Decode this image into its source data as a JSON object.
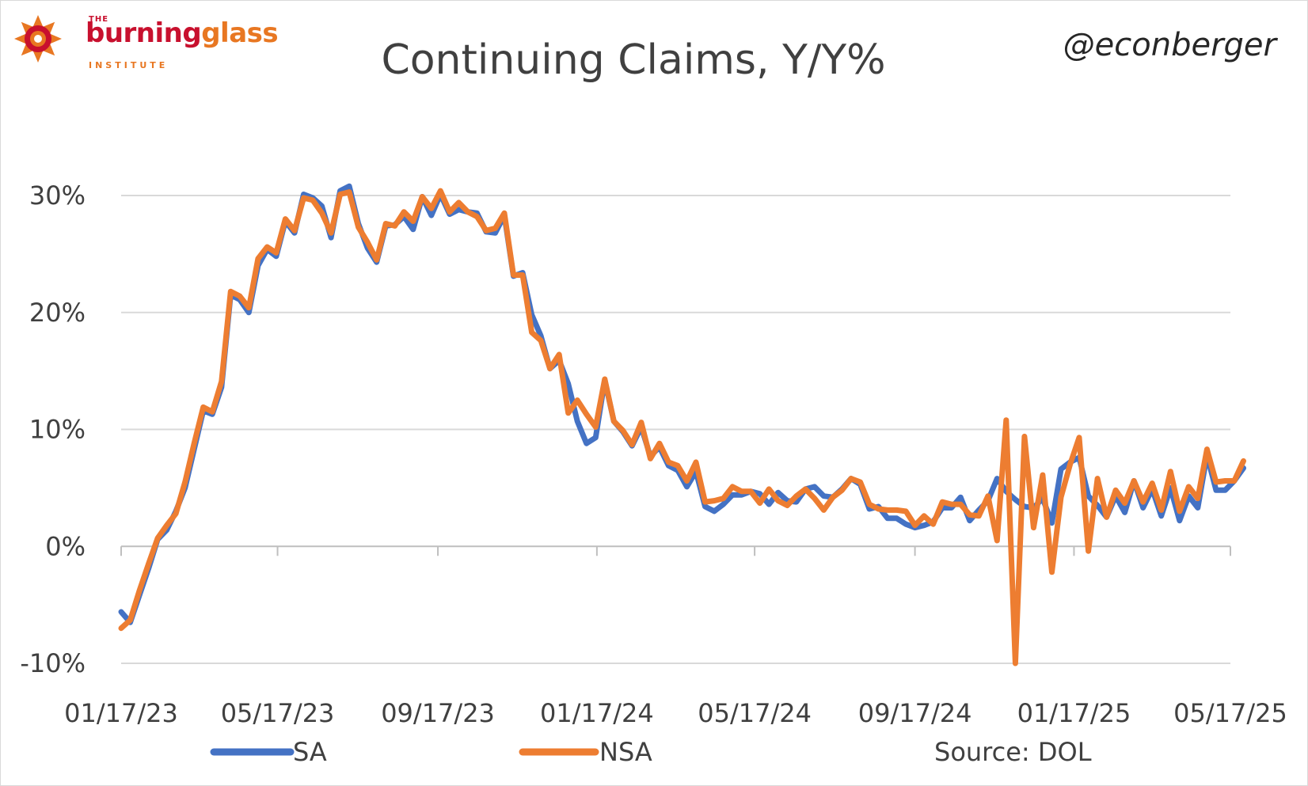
{
  "branding": {
    "logo_the": "THE",
    "logo_burning": "burning",
    "logo_glass": "glass",
    "logo_institute": "INSTITUTE",
    "handle": "@econberger",
    "brand_red": "#c8102e",
    "brand_orange": "#e87722"
  },
  "source_note": "Source: DOL",
  "chart_data": {
    "type": "line",
    "title": "Continuing Claims, Y/Y%",
    "xlabel": "",
    "ylabel": "",
    "ylim": [
      -10,
      30
    ],
    "y_ticks": [
      30,
      20,
      10,
      0,
      -10
    ],
    "y_tick_labels": [
      "30%",
      "20%",
      "10%",
      "0%",
      "-10%"
    ],
    "x_tick_labels": [
      "01/17/23",
      "05/17/23",
      "09/17/23",
      "01/17/24",
      "05/17/24",
      "09/17/24",
      "01/17/25",
      "05/17/25"
    ],
    "x_range": [
      "01/17/23",
      "05/17/25"
    ],
    "grid": true,
    "legend_position": "bottom",
    "series": [
      {
        "name": "SA",
        "color": "#4472c4",
        "values": [
          [
            "2023-01-17",
            -5.6
          ],
          [
            "2023-01-24",
            -6.5
          ],
          [
            "2023-01-31",
            -4.2
          ],
          [
            "2023-02-07",
            -1.9
          ],
          [
            "2023-02-14",
            0.6
          ],
          [
            "2023-02-21",
            1.4
          ],
          [
            "2023-02-28",
            3.0
          ],
          [
            "2023-03-07",
            5.0
          ],
          [
            "2023-03-14",
            8.3
          ],
          [
            "2023-03-21",
            11.6
          ],
          [
            "2023-03-28",
            11.3
          ],
          [
            "2023-04-04",
            13.6
          ],
          [
            "2023-04-11",
            21.5
          ],
          [
            "2023-04-18",
            21.1
          ],
          [
            "2023-04-25",
            20.0
          ],
          [
            "2023-05-02",
            24.0
          ],
          [
            "2023-05-09",
            25.4
          ],
          [
            "2023-05-16",
            24.8
          ],
          [
            "2023-05-23",
            27.8
          ],
          [
            "2023-05-30",
            26.8
          ],
          [
            "2023-06-06",
            30.1
          ],
          [
            "2023-06-13",
            29.8
          ],
          [
            "2023-06-20",
            29.1
          ],
          [
            "2023-06-27",
            26.4
          ],
          [
            "2023-07-04",
            30.4
          ],
          [
            "2023-07-11",
            30.8
          ],
          [
            "2023-07-18",
            27.6
          ],
          [
            "2023-07-25",
            25.5
          ],
          [
            "2023-08-01",
            24.3
          ],
          [
            "2023-08-08",
            27.4
          ],
          [
            "2023-08-15",
            27.5
          ],
          [
            "2023-08-22",
            28.2
          ],
          [
            "2023-08-29",
            27.1
          ],
          [
            "2023-09-05",
            29.9
          ],
          [
            "2023-09-12",
            28.3
          ],
          [
            "2023-09-19",
            30.1
          ],
          [
            "2023-09-26",
            28.4
          ],
          [
            "2023-10-03",
            28.8
          ],
          [
            "2023-10-10",
            28.6
          ],
          [
            "2023-10-17",
            28.5
          ],
          [
            "2023-10-24",
            26.9
          ],
          [
            "2023-10-31",
            26.8
          ],
          [
            "2023-11-07",
            28.3
          ],
          [
            "2023-11-14",
            23.1
          ],
          [
            "2023-11-21",
            23.4
          ],
          [
            "2023-11-28",
            19.8
          ],
          [
            "2023-12-05",
            18.0
          ],
          [
            "2023-12-12",
            15.2
          ],
          [
            "2023-12-19",
            15.9
          ],
          [
            "2023-12-26",
            13.9
          ],
          [
            "2024-01-02",
            10.7
          ],
          [
            "2024-01-09",
            8.8
          ],
          [
            "2024-01-16",
            9.3
          ],
          [
            "2024-01-23",
            14.2
          ],
          [
            "2024-01-30",
            10.7
          ],
          [
            "2024-02-06",
            9.8
          ],
          [
            "2024-02-13",
            8.6
          ],
          [
            "2024-02-20",
            10.2
          ],
          [
            "2024-02-27",
            7.7
          ],
          [
            "2024-03-05",
            8.5
          ],
          [
            "2024-03-12",
            6.9
          ],
          [
            "2024-03-19",
            6.5
          ],
          [
            "2024-03-26",
            5.1
          ],
          [
            "2024-04-02",
            6.4
          ],
          [
            "2024-04-09",
            3.4
          ],
          [
            "2024-04-16",
            3.0
          ],
          [
            "2024-04-23",
            3.6
          ],
          [
            "2024-04-30",
            4.4
          ],
          [
            "2024-05-07",
            4.4
          ],
          [
            "2024-05-14",
            4.7
          ],
          [
            "2024-05-21",
            4.5
          ],
          [
            "2024-05-28",
            3.6
          ],
          [
            "2024-06-04",
            4.6
          ],
          [
            "2024-06-11",
            3.9
          ],
          [
            "2024-06-18",
            3.8
          ],
          [
            "2024-06-25",
            4.9
          ],
          [
            "2024-07-02",
            5.1
          ],
          [
            "2024-07-09",
            4.3
          ],
          [
            "2024-07-16",
            4.2
          ],
          [
            "2024-07-23",
            4.9
          ],
          [
            "2024-07-30",
            5.8
          ],
          [
            "2024-08-06",
            5.3
          ],
          [
            "2024-08-13",
            3.2
          ],
          [
            "2024-08-20",
            3.4
          ],
          [
            "2024-08-27",
            2.4
          ],
          [
            "2024-09-03",
            2.4
          ],
          [
            "2024-09-10",
            1.9
          ],
          [
            "2024-09-17",
            1.6
          ],
          [
            "2024-09-24",
            1.8
          ],
          [
            "2024-10-01",
            2.1
          ],
          [
            "2024-10-08",
            3.3
          ],
          [
            "2024-10-15",
            3.3
          ],
          [
            "2024-10-22",
            4.2
          ],
          [
            "2024-10-29",
            2.2
          ],
          [
            "2024-11-05",
            3.1
          ],
          [
            "2024-11-12",
            3.9
          ],
          [
            "2024-11-19",
            5.8
          ],
          [
            "2024-11-26",
            4.7
          ],
          [
            "2024-12-03",
            4.0
          ],
          [
            "2024-12-10",
            3.4
          ],
          [
            "2024-12-17",
            3.3
          ],
          [
            "2024-12-24",
            4.1
          ],
          [
            "2024-12-31",
            2.0
          ],
          [
            "2025-01-07",
            6.6
          ],
          [
            "2025-01-14",
            7.2
          ],
          [
            "2025-01-21",
            7.6
          ],
          [
            "2025-01-28",
            4.3
          ],
          [
            "2025-02-04",
            3.5
          ],
          [
            "2025-02-11",
            2.5
          ],
          [
            "2025-02-18",
            4.3
          ],
          [
            "2025-02-25",
            2.9
          ],
          [
            "2025-03-04",
            5.6
          ],
          [
            "2025-03-11",
            3.3
          ],
          [
            "2025-03-18",
            4.9
          ],
          [
            "2025-03-25",
            2.6
          ],
          [
            "2025-04-01",
            5.0
          ],
          [
            "2025-04-08",
            2.2
          ],
          [
            "2025-04-15",
            4.3
          ],
          [
            "2025-04-22",
            3.3
          ],
          [
            "2025-04-29",
            7.8
          ],
          [
            "2025-05-06",
            4.8
          ],
          [
            "2025-05-13",
            4.8
          ],
          [
            "2025-05-20",
            5.6
          ],
          [
            "2025-05-27",
            6.7
          ]
        ]
      },
      {
        "name": "NSA",
        "color": "#ed7d31",
        "values": [
          [
            "2023-01-17",
            -7.0
          ],
          [
            "2023-01-24",
            -6.3
          ],
          [
            "2023-01-31",
            -3.8
          ],
          [
            "2023-02-07",
            -1.5
          ],
          [
            "2023-02-14",
            0.7
          ],
          [
            "2023-02-21",
            1.8
          ],
          [
            "2023-02-28",
            2.8
          ],
          [
            "2023-03-07",
            5.5
          ],
          [
            "2023-03-14",
            8.8
          ],
          [
            "2023-03-21",
            11.9
          ],
          [
            "2023-03-28",
            11.5
          ],
          [
            "2023-04-04",
            14.1
          ],
          [
            "2023-04-11",
            21.8
          ],
          [
            "2023-04-18",
            21.4
          ],
          [
            "2023-04-25",
            20.4
          ],
          [
            "2023-05-02",
            24.6
          ],
          [
            "2023-05-09",
            25.6
          ],
          [
            "2023-05-16",
            25.1
          ],
          [
            "2023-05-23",
            28.0
          ],
          [
            "2023-05-30",
            27.0
          ],
          [
            "2023-06-06",
            29.8
          ],
          [
            "2023-06-13",
            29.6
          ],
          [
            "2023-06-20",
            28.5
          ],
          [
            "2023-06-27",
            26.8
          ],
          [
            "2023-07-04",
            30.1
          ],
          [
            "2023-07-11",
            30.3
          ],
          [
            "2023-07-18",
            27.3
          ],
          [
            "2023-07-25",
            26.0
          ],
          [
            "2023-08-01",
            24.5
          ],
          [
            "2023-08-08",
            27.6
          ],
          [
            "2023-08-15",
            27.4
          ],
          [
            "2023-08-22",
            28.6
          ],
          [
            "2023-08-29",
            27.8
          ],
          [
            "2023-09-05",
            29.9
          ],
          [
            "2023-09-12",
            28.9
          ],
          [
            "2023-09-19",
            30.4
          ],
          [
            "2023-09-26",
            28.6
          ],
          [
            "2023-10-03",
            29.4
          ],
          [
            "2023-10-10",
            28.6
          ],
          [
            "2023-10-17",
            28.2
          ],
          [
            "2023-10-24",
            27.0
          ],
          [
            "2023-10-31",
            27.2
          ],
          [
            "2023-11-07",
            28.5
          ],
          [
            "2023-11-14",
            23.2
          ],
          [
            "2023-11-21",
            23.2
          ],
          [
            "2023-11-28",
            18.3
          ],
          [
            "2023-12-05",
            17.6
          ],
          [
            "2023-12-12",
            15.2
          ],
          [
            "2023-12-19",
            16.4
          ],
          [
            "2023-12-26",
            11.4
          ],
          [
            "2024-01-02",
            12.5
          ],
          [
            "2024-01-09",
            11.3
          ],
          [
            "2024-01-16",
            10.2
          ],
          [
            "2024-01-23",
            14.3
          ],
          [
            "2024-01-30",
            10.7
          ],
          [
            "2024-02-06",
            9.9
          ],
          [
            "2024-02-13",
            8.7
          ],
          [
            "2024-02-20",
            10.6
          ],
          [
            "2024-02-27",
            7.5
          ],
          [
            "2024-03-05",
            8.8
          ],
          [
            "2024-03-12",
            7.2
          ],
          [
            "2024-03-19",
            6.9
          ],
          [
            "2024-03-26",
            5.6
          ],
          [
            "2024-04-02",
            7.2
          ],
          [
            "2024-04-09",
            3.8
          ],
          [
            "2024-04-16",
            3.9
          ],
          [
            "2024-04-23",
            4.1
          ],
          [
            "2024-04-30",
            5.1
          ],
          [
            "2024-05-07",
            4.7
          ],
          [
            "2024-05-14",
            4.7
          ],
          [
            "2024-05-21",
            3.7
          ],
          [
            "2024-05-28",
            4.9
          ],
          [
            "2024-06-04",
            3.9
          ],
          [
            "2024-06-11",
            3.5
          ],
          [
            "2024-06-18",
            4.3
          ],
          [
            "2024-06-25",
            4.9
          ],
          [
            "2024-07-02",
            4.1
          ],
          [
            "2024-07-09",
            3.1
          ],
          [
            "2024-07-16",
            4.2
          ],
          [
            "2024-07-23",
            4.8
          ],
          [
            "2024-07-30",
            5.8
          ],
          [
            "2024-08-06",
            5.5
          ],
          [
            "2024-08-13",
            3.6
          ],
          [
            "2024-08-20",
            3.2
          ],
          [
            "2024-08-27",
            3.1
          ],
          [
            "2024-09-03",
            3.1
          ],
          [
            "2024-09-10",
            3.0
          ],
          [
            "2024-09-17",
            1.8
          ],
          [
            "2024-09-24",
            2.6
          ],
          [
            "2024-10-01",
            1.9
          ],
          [
            "2024-10-08",
            3.8
          ],
          [
            "2024-10-15",
            3.6
          ],
          [
            "2024-10-22",
            3.6
          ],
          [
            "2024-10-29",
            2.7
          ],
          [
            "2024-11-05",
            2.6
          ],
          [
            "2024-11-12",
            4.3
          ],
          [
            "2024-11-19",
            0.5
          ],
          [
            "2024-11-26",
            10.8
          ],
          [
            "2024-12-03",
            -10.0
          ],
          [
            "2024-12-10",
            9.4
          ],
          [
            "2024-12-17",
            1.6
          ],
          [
            "2024-12-24",
            6.1
          ],
          [
            "2024-12-31",
            -2.2
          ],
          [
            "2025-01-07",
            4.2
          ],
          [
            "2025-01-14",
            7.0
          ],
          [
            "2025-01-21",
            9.3
          ],
          [
            "2025-01-28",
            -0.4
          ],
          [
            "2025-02-04",
            5.8
          ],
          [
            "2025-02-11",
            2.5
          ],
          [
            "2025-02-18",
            4.8
          ],
          [
            "2025-02-25",
            3.7
          ],
          [
            "2025-03-04",
            5.6
          ],
          [
            "2025-03-11",
            3.8
          ],
          [
            "2025-03-18",
            5.4
          ],
          [
            "2025-03-25",
            3.1
          ],
          [
            "2025-04-01",
            6.4
          ],
          [
            "2025-04-08",
            3.0
          ],
          [
            "2025-04-15",
            5.1
          ],
          [
            "2025-04-22",
            4.1
          ],
          [
            "2025-04-29",
            8.3
          ],
          [
            "2025-05-06",
            5.5
          ],
          [
            "2025-05-13",
            5.6
          ],
          [
            "2025-05-20",
            5.6
          ],
          [
            "2025-05-27",
            7.3
          ]
        ]
      }
    ]
  }
}
